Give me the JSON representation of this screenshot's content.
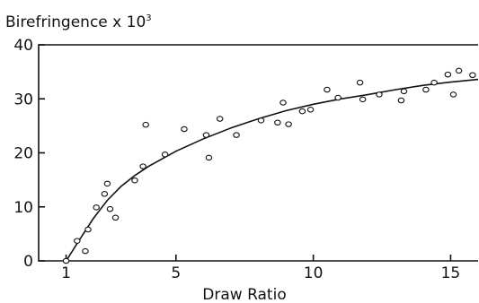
{
  "chart_data": {
    "type": "scatter",
    "title": "",
    "ylabel": "Birefringence x 10",
    "ylabel_exponent": "3",
    "xlabel": "Draw Ratio",
    "xlim": [
      0,
      16
    ],
    "ylim": [
      0,
      40
    ],
    "x_ticks": [
      1,
      5,
      10,
      15
    ],
    "x_tick_labels": [
      "1",
      "5",
      "10",
      "15"
    ],
    "y_ticks": [
      0,
      10,
      20,
      30,
      40
    ],
    "y_tick_labels": [
      "0",
      "10",
      "20",
      "30",
      "40"
    ],
    "grid": false,
    "legend": "none",
    "series": [
      {
        "type": "scatter",
        "points": [
          [
            1.0,
            0.0
          ],
          [
            1.4,
            3.7
          ],
          [
            1.7,
            1.8
          ],
          [
            1.8,
            5.8
          ],
          [
            2.1,
            9.9
          ],
          [
            2.4,
            12.4
          ],
          [
            2.5,
            14.3
          ],
          [
            2.6,
            9.6
          ],
          [
            2.8,
            8.0
          ],
          [
            3.5,
            14.9
          ],
          [
            3.8,
            17.5
          ],
          [
            3.9,
            25.2
          ],
          [
            4.6,
            19.7
          ],
          [
            5.3,
            24.4
          ],
          [
            6.1,
            23.3
          ],
          [
            6.2,
            19.1
          ],
          [
            6.6,
            26.3
          ],
          [
            7.2,
            23.3
          ],
          [
            8.1,
            26.0
          ],
          [
            8.7,
            25.6
          ],
          [
            8.9,
            29.3
          ],
          [
            9.1,
            25.3
          ],
          [
            9.6,
            27.7
          ],
          [
            9.9,
            28.0
          ],
          [
            10.5,
            31.7
          ],
          [
            10.9,
            30.2
          ],
          [
            11.7,
            33.0
          ],
          [
            11.8,
            29.9
          ],
          [
            12.4,
            30.8
          ],
          [
            13.2,
            29.7
          ],
          [
            13.3,
            31.4
          ],
          [
            14.1,
            31.7
          ],
          [
            14.4,
            33.0
          ],
          [
            14.9,
            34.5
          ],
          [
            15.1,
            30.8
          ],
          [
            15.3,
            35.2
          ],
          [
            15.8,
            34.4
          ]
        ]
      },
      {
        "type": "line",
        "points": [
          [
            1.0,
            0.0
          ],
          [
            1.5,
            4.0
          ],
          [
            2.0,
            7.9
          ],
          [
            2.5,
            11.2
          ],
          [
            3.0,
            13.8
          ],
          [
            3.5,
            15.8
          ],
          [
            4.0,
            17.5
          ],
          [
            5.0,
            20.3
          ],
          [
            6.0,
            22.6
          ],
          [
            7.0,
            24.6
          ],
          [
            8.0,
            26.3
          ],
          [
            9.0,
            27.8
          ],
          [
            10.0,
            29.0
          ],
          [
            11.0,
            30.0
          ],
          [
            12.0,
            30.8
          ],
          [
            13.0,
            31.7
          ],
          [
            14.0,
            32.5
          ],
          [
            15.0,
            33.1
          ],
          [
            16.0,
            33.6
          ]
        ]
      }
    ]
  }
}
